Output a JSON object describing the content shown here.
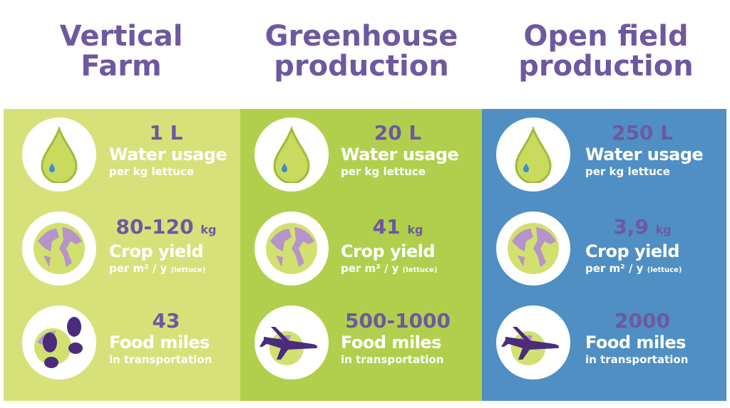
{
  "colors": {
    "title": "#6e58a0",
    "vertical_bg": "#d7e17a",
    "greenhouse_bg": "#b1cf4c",
    "openfield_bg": "#4f8fc3",
    "purple": "#6e58a0"
  },
  "columns": [
    {
      "title": "Vertical\nFarm",
      "water": {
        "value": "1 L",
        "label": "Water usage",
        "sub": "per kg lettuce",
        "icon": "water-drop-icon"
      },
      "yield": {
        "value": "80-120",
        "unit": "kg",
        "label": "Crop yield",
        "sub": "per m² / y",
        "sub_small": "(lettuce)",
        "icon": "globe-icon"
      },
      "miles": {
        "value": "43",
        "label": "Food miles",
        "sub": "in transportation",
        "icon": "footprints-globe-icon"
      }
    },
    {
      "title": "Greenhouse\nproduction",
      "water": {
        "value": "20 L",
        "label": "Water usage",
        "sub": "per kg lettuce",
        "icon": "water-drop-icon"
      },
      "yield": {
        "value": "41",
        "unit": "kg",
        "label": "Crop yield",
        "sub": "per m² / y",
        "sub_small": "(lettuce)",
        "icon": "globe-icon"
      },
      "miles": {
        "value": "500-1000",
        "label": "Food miles",
        "sub": "in transportation",
        "icon": "airplane-globe-icon"
      }
    },
    {
      "title": "Open field\nproduction",
      "water": {
        "value": "250 L",
        "label": "Water usage",
        "sub": "per kg lettuce",
        "icon": "water-drop-icon"
      },
      "yield": {
        "value": "3,9",
        "unit": "kg",
        "label": "Crop yield",
        "sub": "per m² / y",
        "sub_small": "(lettuce)",
        "icon": "globe-icon"
      },
      "miles": {
        "value": "2000",
        "label": "Food miles",
        "sub": "in transportation",
        "icon": "airplane-globe-icon"
      }
    }
  ]
}
